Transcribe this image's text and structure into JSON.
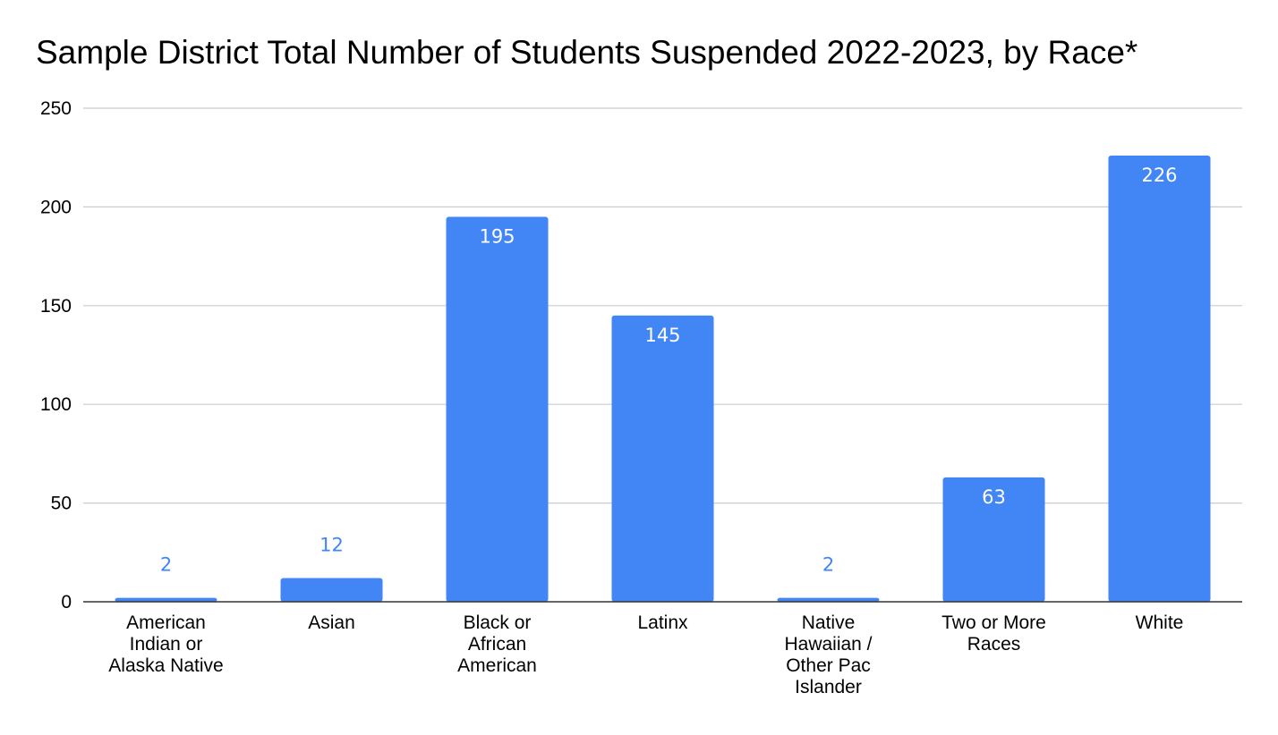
{
  "chart_data": {
    "type": "bar",
    "title": "Sample District Total Number of Students Suspended 2022-2023, by Race*",
    "xlabel": "",
    "ylabel": "",
    "categories": [
      "American Indian or Alaska Native",
      "Asian",
      "Black or African American",
      "Latinx",
      "Native Hawaiian / Other Pac Islander",
      "Two or More Races",
      "White"
    ],
    "category_label_lines": [
      [
        "American",
        "Indian or",
        "Alaska Native"
      ],
      [
        "Asian"
      ],
      [
        "Black or",
        "African",
        "American"
      ],
      [
        "Latinx"
      ],
      [
        "Native",
        "Hawaiian /",
        "Other Pac",
        "Islander"
      ],
      [
        "Two or More",
        "Races"
      ],
      [
        "White"
      ]
    ],
    "values": [
      2,
      12,
      195,
      145,
      2,
      63,
      226
    ],
    "data_labels": [
      "2",
      "12",
      "195",
      "145",
      "2",
      "63",
      "226"
    ],
    "ylim": [
      0,
      250
    ],
    "y_ticks": [
      0,
      50,
      100,
      150,
      200,
      250
    ],
    "y_tick_labels": [
      "0",
      "50",
      "100",
      "150",
      "200",
      "250"
    ],
    "grid": true,
    "legend": "none",
    "colors": {
      "bar": "#4285f4",
      "label_inside": "#ffffff",
      "label_outside": "#4285f4",
      "grid": "#cccccc",
      "axis": "#333333"
    }
  }
}
